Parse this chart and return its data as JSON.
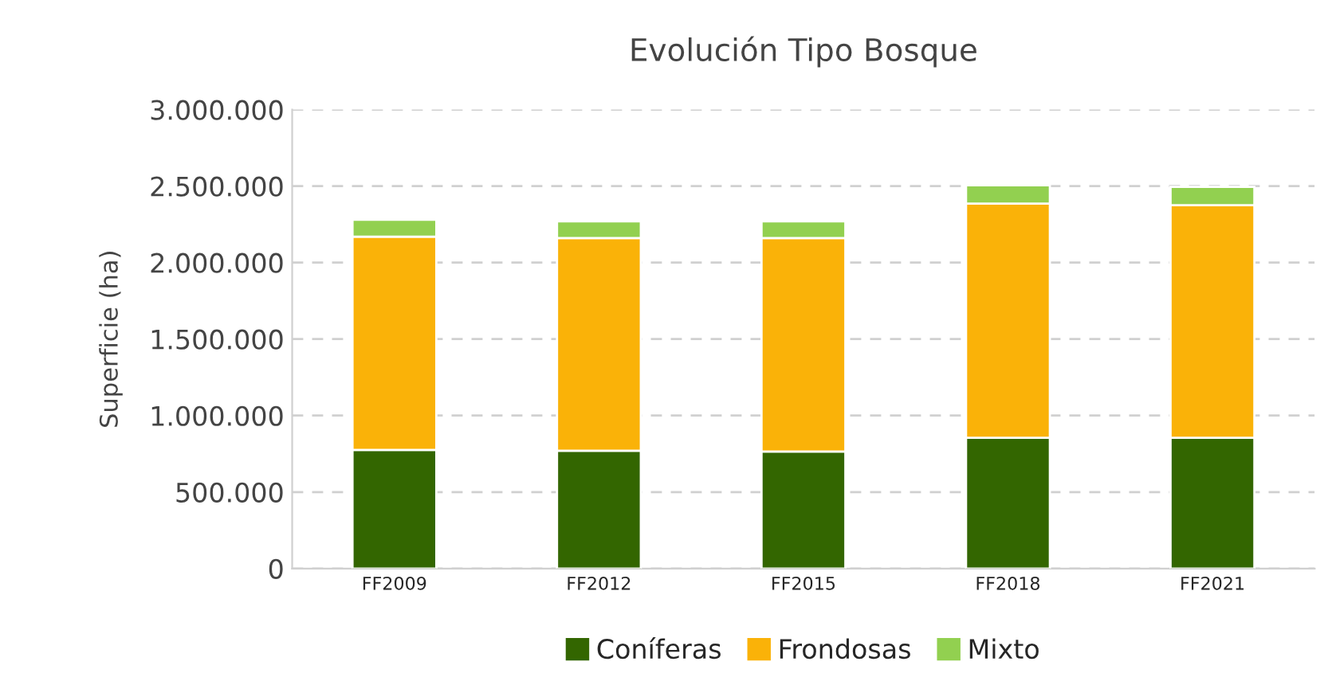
{
  "chart_data": {
    "type": "bar",
    "title": "Evolución Tipo Bosque",
    "ylabel": "Superficie (ha)",
    "stacked": true,
    "categories": [
      "FF2009",
      "FF2012",
      "FF2015",
      "FF2018",
      "FF2021"
    ],
    "series": [
      {
        "name": "Coníferas",
        "color": "#336600",
        "values": [
          775000,
          770000,
          765000,
          855000,
          855000
        ]
      },
      {
        "name": "Frondosas",
        "color": "#fab208",
        "values": [
          1395000,
          1390000,
          1395000,
          1530000,
          1520000
        ]
      },
      {
        "name": "Mixto",
        "color": "#92d050",
        "values": [
          110000,
          110000,
          110000,
          120000,
          120000
        ]
      }
    ],
    "ylim": [
      0,
      3000000
    ],
    "yticks": [
      {
        "value": 0,
        "label": "0"
      },
      {
        "value": 500000,
        "label": "500.000"
      },
      {
        "value": 1000000,
        "label": "1.000.000"
      },
      {
        "value": 1500000,
        "label": "1.500.000"
      },
      {
        "value": 2000000,
        "label": "2.000.000"
      },
      {
        "value": 2500000,
        "label": "2.500.000"
      },
      {
        "value": 3000000,
        "label": "3.000.000"
      }
    ],
    "grid": "y",
    "legend": "bottom"
  }
}
